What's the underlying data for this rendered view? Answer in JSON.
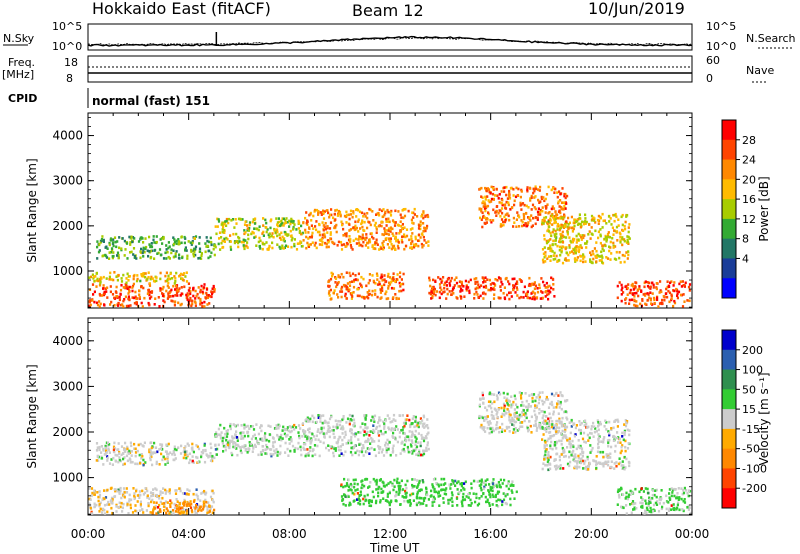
{
  "header": {
    "station": "Hokkaido East (fitACF)",
    "beam": "Beam 12",
    "date": "10/Jun/2019"
  },
  "noise_panel": {
    "left_label": "N.Sky",
    "right_label": "N.Search",
    "left_ticks": [
      "10^5",
      "10^0"
    ],
    "right_ticks": [
      "10^5",
      "10^0"
    ]
  },
  "freq_panel": {
    "left_label": "Freq.",
    "left_unit": "[MHz]",
    "right_label": "Nave",
    "left_ticks": [
      "18",
      "8"
    ],
    "right_ticks": [
      "60",
      "0"
    ]
  },
  "cpid_panel": {
    "label": "CPID",
    "value": "normal (fast) 151"
  },
  "chart_data": [
    {
      "type": "heatmap",
      "name": "power",
      "ylabel": "Slant Range [km]",
      "xlabel": "Time UT",
      "ylim": [
        180,
        4500
      ],
      "y_ticks": [
        "1000",
        "2000",
        "3000",
        "4000"
      ],
      "x_ticks": [
        "00:00",
        "04:00",
        "08:00",
        "12:00",
        "16:00",
        "20:00",
        "00:00"
      ],
      "colorbar": {
        "label": "Power [dB]",
        "ticks": [
          "28",
          "24",
          "20",
          "16",
          "12",
          "8",
          "4"
        ],
        "colors": [
          "#ff0000",
          "#ff4400",
          "#ff8800",
          "#ffbb00",
          "#a8cc00",
          "#33aa33",
          "#227766",
          "#1a3d99",
          "#0000ff"
        ]
      },
      "regions": [
        {
          "t0": 0.0,
          "t1": 5.0,
          "r0": 200,
          "r1": 750,
          "value": 28
        },
        {
          "t0": 0.0,
          "t1": 4.0,
          "r0": 750,
          "r1": 1000,
          "value": 20
        },
        {
          "t0": 0.3,
          "t1": 5.0,
          "r0": 1300,
          "r1": 1800,
          "value": 14
        },
        {
          "t0": 5.0,
          "t1": 8.5,
          "r0": 1500,
          "r1": 2200,
          "value": 18
        },
        {
          "t0": 8.5,
          "t1": 13.5,
          "r0": 1500,
          "r1": 2400,
          "value": 24
        },
        {
          "t0": 9.5,
          "t1": 12.5,
          "r0": 400,
          "r1": 1000,
          "value": 26
        },
        {
          "t0": 13.5,
          "t1": 18.5,
          "r0": 400,
          "r1": 900,
          "value": 28
        },
        {
          "t0": 15.5,
          "t1": 19.0,
          "r0": 2000,
          "r1": 2900,
          "value": 26
        },
        {
          "t0": 18.0,
          "t1": 21.5,
          "r0": 1200,
          "r1": 2300,
          "value": 20
        },
        {
          "t0": 21.0,
          "t1": 24.0,
          "r0": 200,
          "r1": 800,
          "value": 28
        }
      ]
    },
    {
      "type": "heatmap",
      "name": "velocity",
      "ylabel": "Slant Range [km]",
      "xlabel": "Time UT",
      "ylim": [
        180,
        4500
      ],
      "y_ticks": [
        "1000",
        "2000",
        "3000",
        "4000"
      ],
      "x_ticks": [
        "00:00",
        "04:00",
        "08:00",
        "12:00",
        "16:00",
        "20:00",
        "00:00"
      ],
      "colorbar": {
        "label": "Velocity [m s⁻¹]",
        "ticks": [
          "200",
          "100",
          "50",
          "15",
          "-15",
          "-50",
          "-100",
          "-200"
        ],
        "colors": [
          "#0000cc",
          "#2b5fb0",
          "#2f8f4f",
          "#33cc33",
          "#cccccc",
          "#ffaa00",
          "#ff8800",
          "#ff4400",
          "#ff0000"
        ]
      },
      "regions": [
        {
          "t0": 0.0,
          "t1": 5.0,
          "r0": 200,
          "r1": 800,
          "value": -10
        },
        {
          "t0": 2.5,
          "t1": 5.0,
          "r0": 200,
          "r1": 500,
          "value": -60
        },
        {
          "t0": 0.3,
          "t1": 5.0,
          "r0": 1300,
          "r1": 1800,
          "value": 0
        },
        {
          "t0": 5.0,
          "t1": 8.5,
          "r0": 1500,
          "r1": 2200,
          "value": 5
        },
        {
          "t0": 8.5,
          "t1": 13.5,
          "r0": 1500,
          "r1": 2400,
          "value": 5
        },
        {
          "t0": 10.0,
          "t1": 17.0,
          "r0": 400,
          "r1": 1000,
          "value": 30
        },
        {
          "t0": 15.5,
          "t1": 19.0,
          "r0": 2000,
          "r1": 2900,
          "value": 0
        },
        {
          "t0": 18.0,
          "t1": 21.5,
          "r0": 1200,
          "r1": 2300,
          "value": 0
        },
        {
          "t0": 21.0,
          "t1": 24.0,
          "r0": 200,
          "r1": 800,
          "value": 20
        }
      ]
    }
  ]
}
